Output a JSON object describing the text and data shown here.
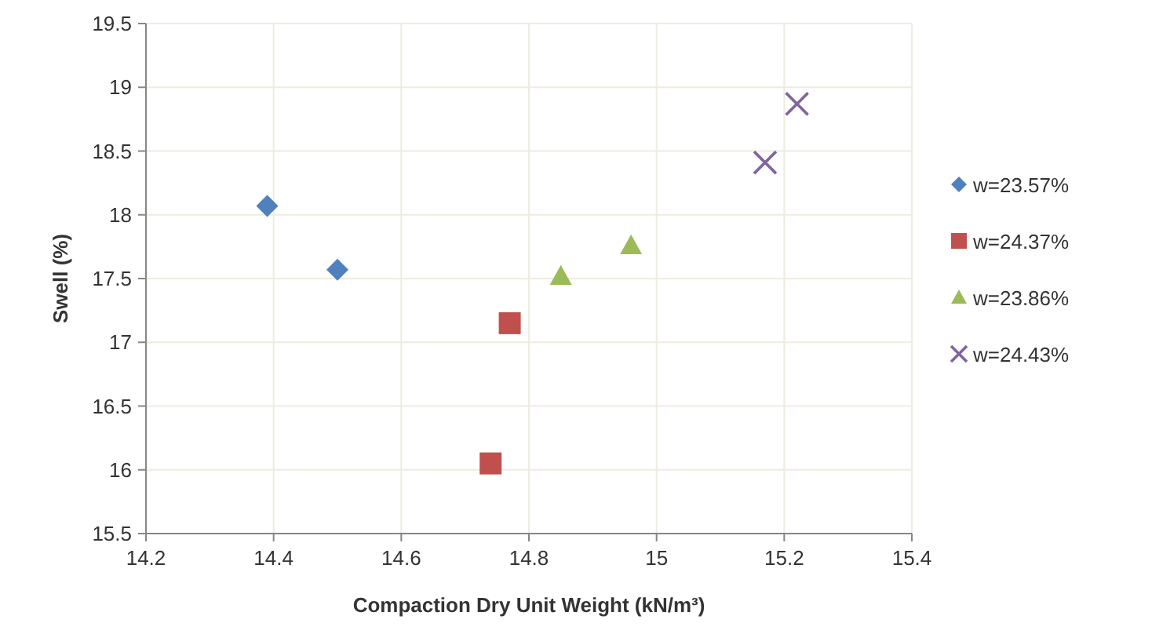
{
  "chart_data": {
    "type": "scatter",
    "xlabel": "Compaction Dry Unit Weight (kN/m³)",
    "ylabel": "Swell (%)",
    "xlim": [
      14.2,
      15.4
    ],
    "xticks": [
      14.2,
      14.4,
      14.6,
      14.8,
      {
        "value": 15,
        "label": "15"
      },
      15.2,
      15.4
    ],
    "ylim": [
      15.5,
      19.5
    ],
    "yticks": [
      15.5,
      16,
      16.5,
      17,
      17.5,
      18,
      18.5,
      19,
      19.5
    ],
    "grid": true,
    "legend": "right",
    "series": [
      {
        "name": "w=23.57%",
        "color": "#4f81bd",
        "marker": "diamond",
        "x": [
          14.39,
          14.5
        ],
        "values": [
          18.07,
          17.57
        ]
      },
      {
        "name": "w=24.37%",
        "color": "#c0504d",
        "marker": "square",
        "x": [
          14.77,
          14.74
        ],
        "values": [
          17.15,
          16.05
        ]
      },
      {
        "name": "w=23.86%",
        "color": "#9bbb59",
        "marker": "triangle",
        "x": [
          14.85,
          14.96
        ],
        "values": [
          17.52,
          17.76
        ]
      },
      {
        "name": "w=24.43%",
        "color": "#8064a2",
        "marker": "cross",
        "x": [
          15.17,
          15.22
        ],
        "values": [
          18.41,
          18.87
        ]
      }
    ]
  }
}
